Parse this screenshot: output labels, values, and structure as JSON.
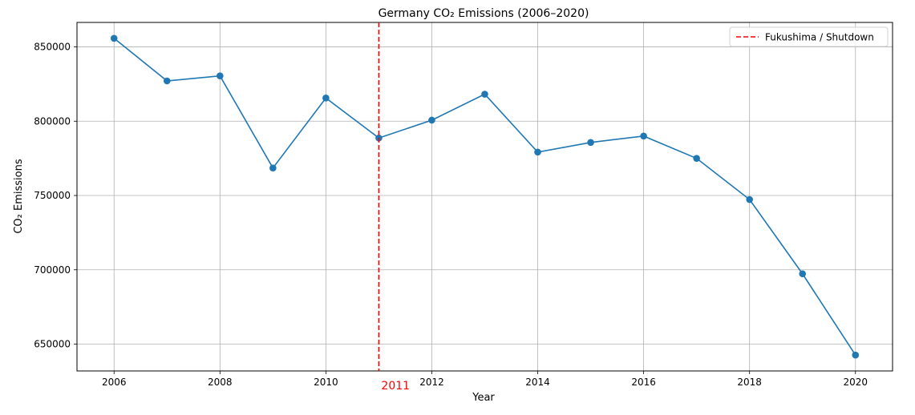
{
  "chart_data": {
    "type": "line",
    "title": "Germany CO₂ Emissions (2006–2020)",
    "xlabel": "Year",
    "ylabel": "CO₂ Emissions",
    "x": [
      2006,
      2007,
      2008,
      2009,
      2010,
      2011,
      2012,
      2013,
      2014,
      2015,
      2016,
      2017,
      2018,
      2019,
      2020
    ],
    "series": [
      {
        "values": [
          855800,
          827100,
          830500,
          768500,
          815600,
          788700,
          800700,
          818200,
          779200,
          785700,
          790000,
          775000,
          747300,
          697300,
          642600
        ],
        "color": "#1f77b4"
      }
    ],
    "xticks": [
      2006,
      2008,
      2010,
      2012,
      2014,
      2016,
      2018,
      2020
    ],
    "yticks": [
      650000,
      700000,
      750000,
      800000,
      850000
    ],
    "xlim": [
      2005.3,
      2020.7
    ],
    "ylim": [
      631930,
      866470
    ],
    "grid": true,
    "vline": {
      "x": 2011,
      "label": "2011",
      "color": "#ff0000",
      "style": "dashed"
    },
    "legend": {
      "position": "top-right",
      "entries": [
        {
          "label": "Fukushima / Shutdown",
          "color": "#ff0000",
          "style": "dashed"
        }
      ]
    }
  }
}
